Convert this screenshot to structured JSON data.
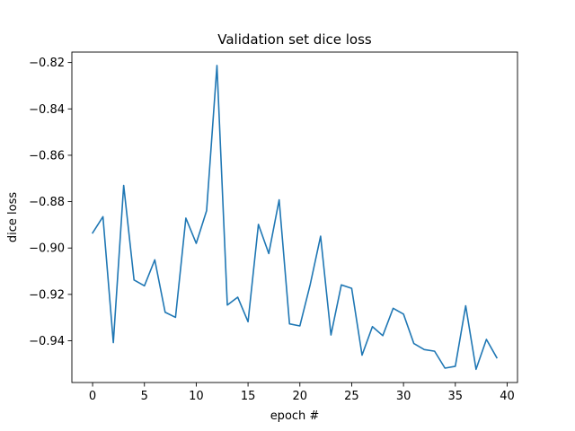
{
  "chart_data": {
    "type": "line",
    "title": "Validation set dice loss",
    "xlabel": "epoch #",
    "ylabel": "dice loss",
    "xlim": [
      -2,
      41
    ],
    "ylim": [
      -0.958,
      -0.8155
    ],
    "xticks": [
      0,
      5,
      10,
      15,
      20,
      25,
      30,
      35,
      40
    ],
    "yticks": [
      -0.94,
      -0.92,
      -0.9,
      -0.88,
      -0.86,
      -0.84,
      -0.82
    ],
    "xtick_labels": [
      "0",
      "5",
      "10",
      "15",
      "20",
      "25",
      "30",
      "35",
      "40"
    ],
    "ytick_labels": [
      "−0.94",
      "−0.92",
      "−0.90",
      "−0.88",
      "−0.86",
      "−0.84",
      "−0.82"
    ],
    "grid": false,
    "series_color": "#1f77b4",
    "x": [
      0,
      1,
      2,
      3,
      4,
      5,
      6,
      7,
      8,
      9,
      10,
      11,
      12,
      13,
      14,
      15,
      16,
      17,
      18,
      19,
      20,
      21,
      22,
      23,
      24,
      25,
      26,
      27,
      28,
      29,
      30,
      31,
      32,
      33,
      34,
      35,
      36,
      37,
      38,
      39
    ],
    "y": [
      -0.8935,
      -0.8865,
      -0.9408,
      -0.873,
      -0.9138,
      -0.9163,
      -0.9051,
      -0.9277,
      -0.9299,
      -0.8871,
      -0.898,
      -0.8839,
      -0.8213,
      -0.9246,
      -0.9212,
      -0.9318,
      -0.8898,
      -0.9024,
      -0.8792,
      -0.9327,
      -0.9336,
      -0.9157,
      -0.8949,
      -0.9375,
      -0.9159,
      -0.9174,
      -0.9462,
      -0.9339,
      -0.9378,
      -0.926,
      -0.9285,
      -0.9412,
      -0.9438,
      -0.9445,
      -0.9518,
      -0.951,
      -0.9249,
      -0.9523,
      -0.9394,
      -0.9473
    ]
  }
}
